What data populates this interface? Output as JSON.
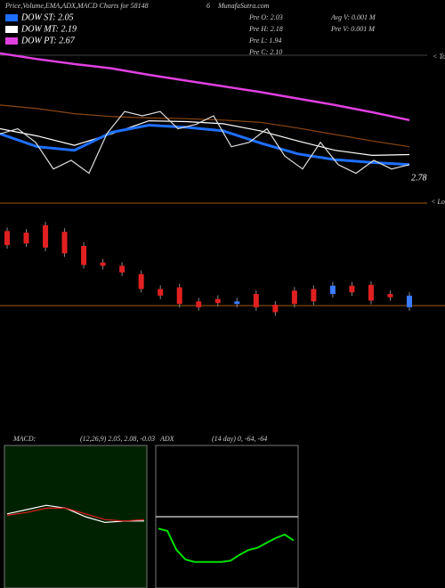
{
  "header": {
    "title": "Price,Volume,EMA,ADX,MACD Charts for 58148",
    "code": "6",
    "site": "MunafaSutra.com"
  },
  "legend": [
    {
      "label": "DOW ST: 2.05",
      "color": "#1e6fff"
    },
    {
      "label": "DOW MT: 2.19",
      "color": "#ffffff"
    },
    {
      "label": "DOW PT: 2.67",
      "color": "#e040e0"
    }
  ],
  "stats": {
    "left": [
      "Pre O: 2.03",
      "Pre H: 2.18",
      "Pre L: 1.94",
      "Pre C: 2.10"
    ],
    "right": [
      "Avg V: 0.001 M",
      "Pre V: 0.001 M"
    ]
  },
  "price_label": "2.78",
  "top_label": "< Tops",
  "low_label": "< Lows",
  "chart_data": [
    {
      "type": "line",
      "ylim": [
        1.49,
        3.66
      ],
      "series": [
        {
          "name": "PT",
          "color": "#e040e0",
          "values": [
            3.6,
            3.52,
            3.45,
            3.39,
            3.3,
            3.22,
            3.14,
            3.06,
            2.97,
            2.88,
            2.78,
            2.67
          ]
        },
        {
          "name": "EMA long",
          "color": "#8b4513",
          "values": [
            2.88,
            2.83,
            2.76,
            2.72,
            2.7,
            2.69,
            2.67,
            2.64,
            2.56,
            2.47,
            2.38,
            2.3
          ]
        },
        {
          "name": "MT",
          "color": "#ffffff",
          "values": [
            2.55,
            2.45,
            2.32,
            2.48,
            2.66,
            2.65,
            2.62,
            2.52,
            2.38,
            2.25,
            2.18,
            2.19
          ]
        },
        {
          "name": "ST",
          "color": "#1e6fff",
          "values": [
            2.48,
            2.3,
            2.25,
            2.5,
            2.6,
            2.57,
            2.52,
            2.35,
            2.2,
            2.12,
            2.08,
            2.05
          ]
        },
        {
          "name": "Price",
          "color": "#dddddd",
          "values": [
            2.48,
            2.55,
            2.36,
            1.99,
            2.11,
            1.93,
            2.48,
            2.79,
            2.73,
            2.79,
            2.55,
            2.61,
            2.73,
            2.3,
            2.36,
            2.55,
            2.17,
            1.99,
            2.36,
            2.05,
            1.93,
            2.11,
            1.99,
            2.05
          ]
        }
      ]
    },
    {
      "type": "candle",
      "ylim": [
        0,
        100
      ],
      "up_color": "#3a7bff",
      "down_color": "#e02020",
      "open": [
        90,
        88,
        97,
        89,
        72,
        52,
        48,
        38,
        20,
        22,
        5,
        8,
        2,
        14,
        1,
        18,
        20,
        14,
        24,
        25,
        14,
        -2
      ],
      "close": [
        73,
        75,
        70,
        63,
        49,
        48,
        40,
        20,
        12,
        2,
        -2,
        3,
        5,
        -2,
        -8,
        2,
        5,
        24,
        16,
        6,
        10,
        12
      ]
    },
    {
      "type": "line",
      "title": "MACD:",
      "params": "(12,26,9) 2.05, 2.08, -0.03",
      "ylim": [
        -0.5,
        0.5
      ],
      "series": [
        {
          "name": "MACD",
          "color": "#ffffff",
          "values": [
            0.02,
            0.05,
            0.08,
            0.06,
            0.0,
            -0.04,
            -0.03,
            -0.03
          ]
        },
        {
          "name": "Signal",
          "color": "#e02020",
          "values": [
            0.01,
            0.03,
            0.06,
            0.06,
            0.02,
            -0.02,
            -0.03,
            -0.02
          ]
        }
      ]
    },
    {
      "type": "line",
      "title": "ADX",
      "params": "(14 day) 0, -64, -64",
      "ylim": [
        -100,
        20
      ],
      "series": [
        {
          "name": "ADX",
          "color": "#00e000",
          "values": [
            -50,
            -52,
            -68,
            -76,
            -78,
            -78,
            -78,
            -78,
            -77,
            -72,
            -68,
            -66,
            -62,
            -58,
            -55,
            -60
          ]
        }
      ]
    }
  ]
}
